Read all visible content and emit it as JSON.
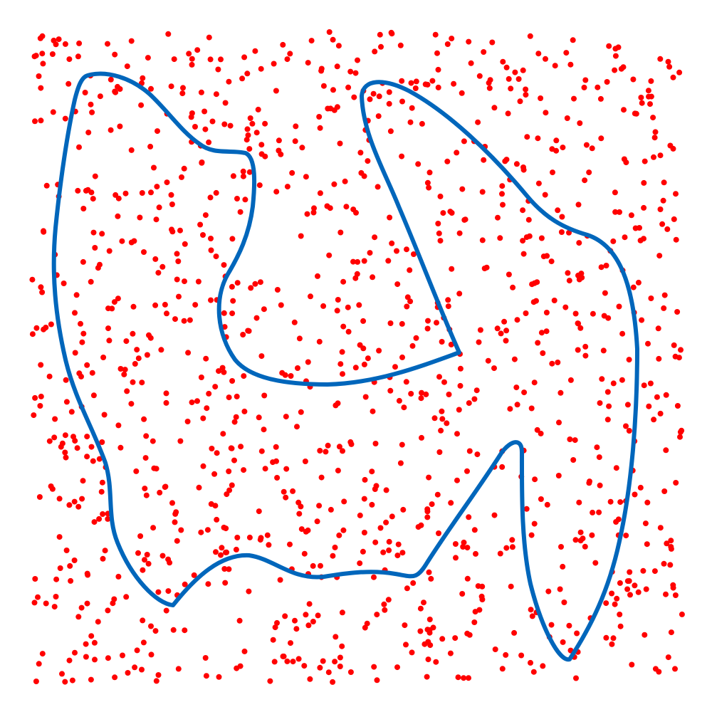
{
  "diagram": {
    "type": "point-scatter-with-closed-curve",
    "background_color": "#ffffff",
    "point_color": "#ff0000",
    "curve_color": "#0066bb",
    "point_count": 1200,
    "point_seed": 20240517,
    "curve_count": 1
  }
}
